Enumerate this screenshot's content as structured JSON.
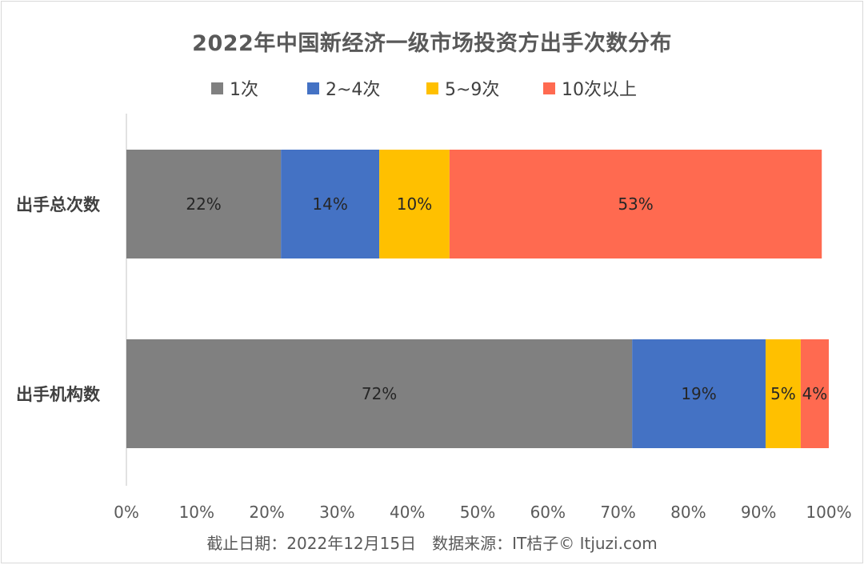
{
  "title": "2022年中国新经济一级市场投资方出手次数分布",
  "footer": "截止日期：2022年12月15日　数据来源：IT桔子© Itjuzi.com",
  "chart_data": {
    "type": "bar",
    "orientation": "horizontal",
    "stacked": true,
    "percent": true,
    "title": "2022年中国新经济一级市场投资方出手次数分布",
    "categories": [
      "出手总次数",
      "出手机构数"
    ],
    "series": [
      {
        "name": "1次",
        "color": "#808080",
        "values": [
          22,
          72
        ],
        "labels": [
          "22%",
          "72%"
        ]
      },
      {
        "name": "2~4次",
        "color": "#4472c4",
        "values": [
          14,
          19
        ],
        "labels": [
          "14%",
          "19%"
        ]
      },
      {
        "name": "5~9次",
        "color": "#ffc000",
        "values": [
          10,
          5
        ],
        "labels": [
          "10%",
          "5%"
        ]
      },
      {
        "name": "10次以上",
        "color": "#ff6a50",
        "values": [
          53,
          4
        ],
        "labels": [
          "53%",
          "4%"
        ]
      }
    ],
    "xlim": [
      0,
      100
    ],
    "x_ticks": [
      "0%",
      "10%",
      "20%",
      "30%",
      "40%",
      "50%",
      "60%",
      "70%",
      "80%",
      "90%",
      "100%"
    ],
    "grid": false,
    "legend_position": "top"
  }
}
